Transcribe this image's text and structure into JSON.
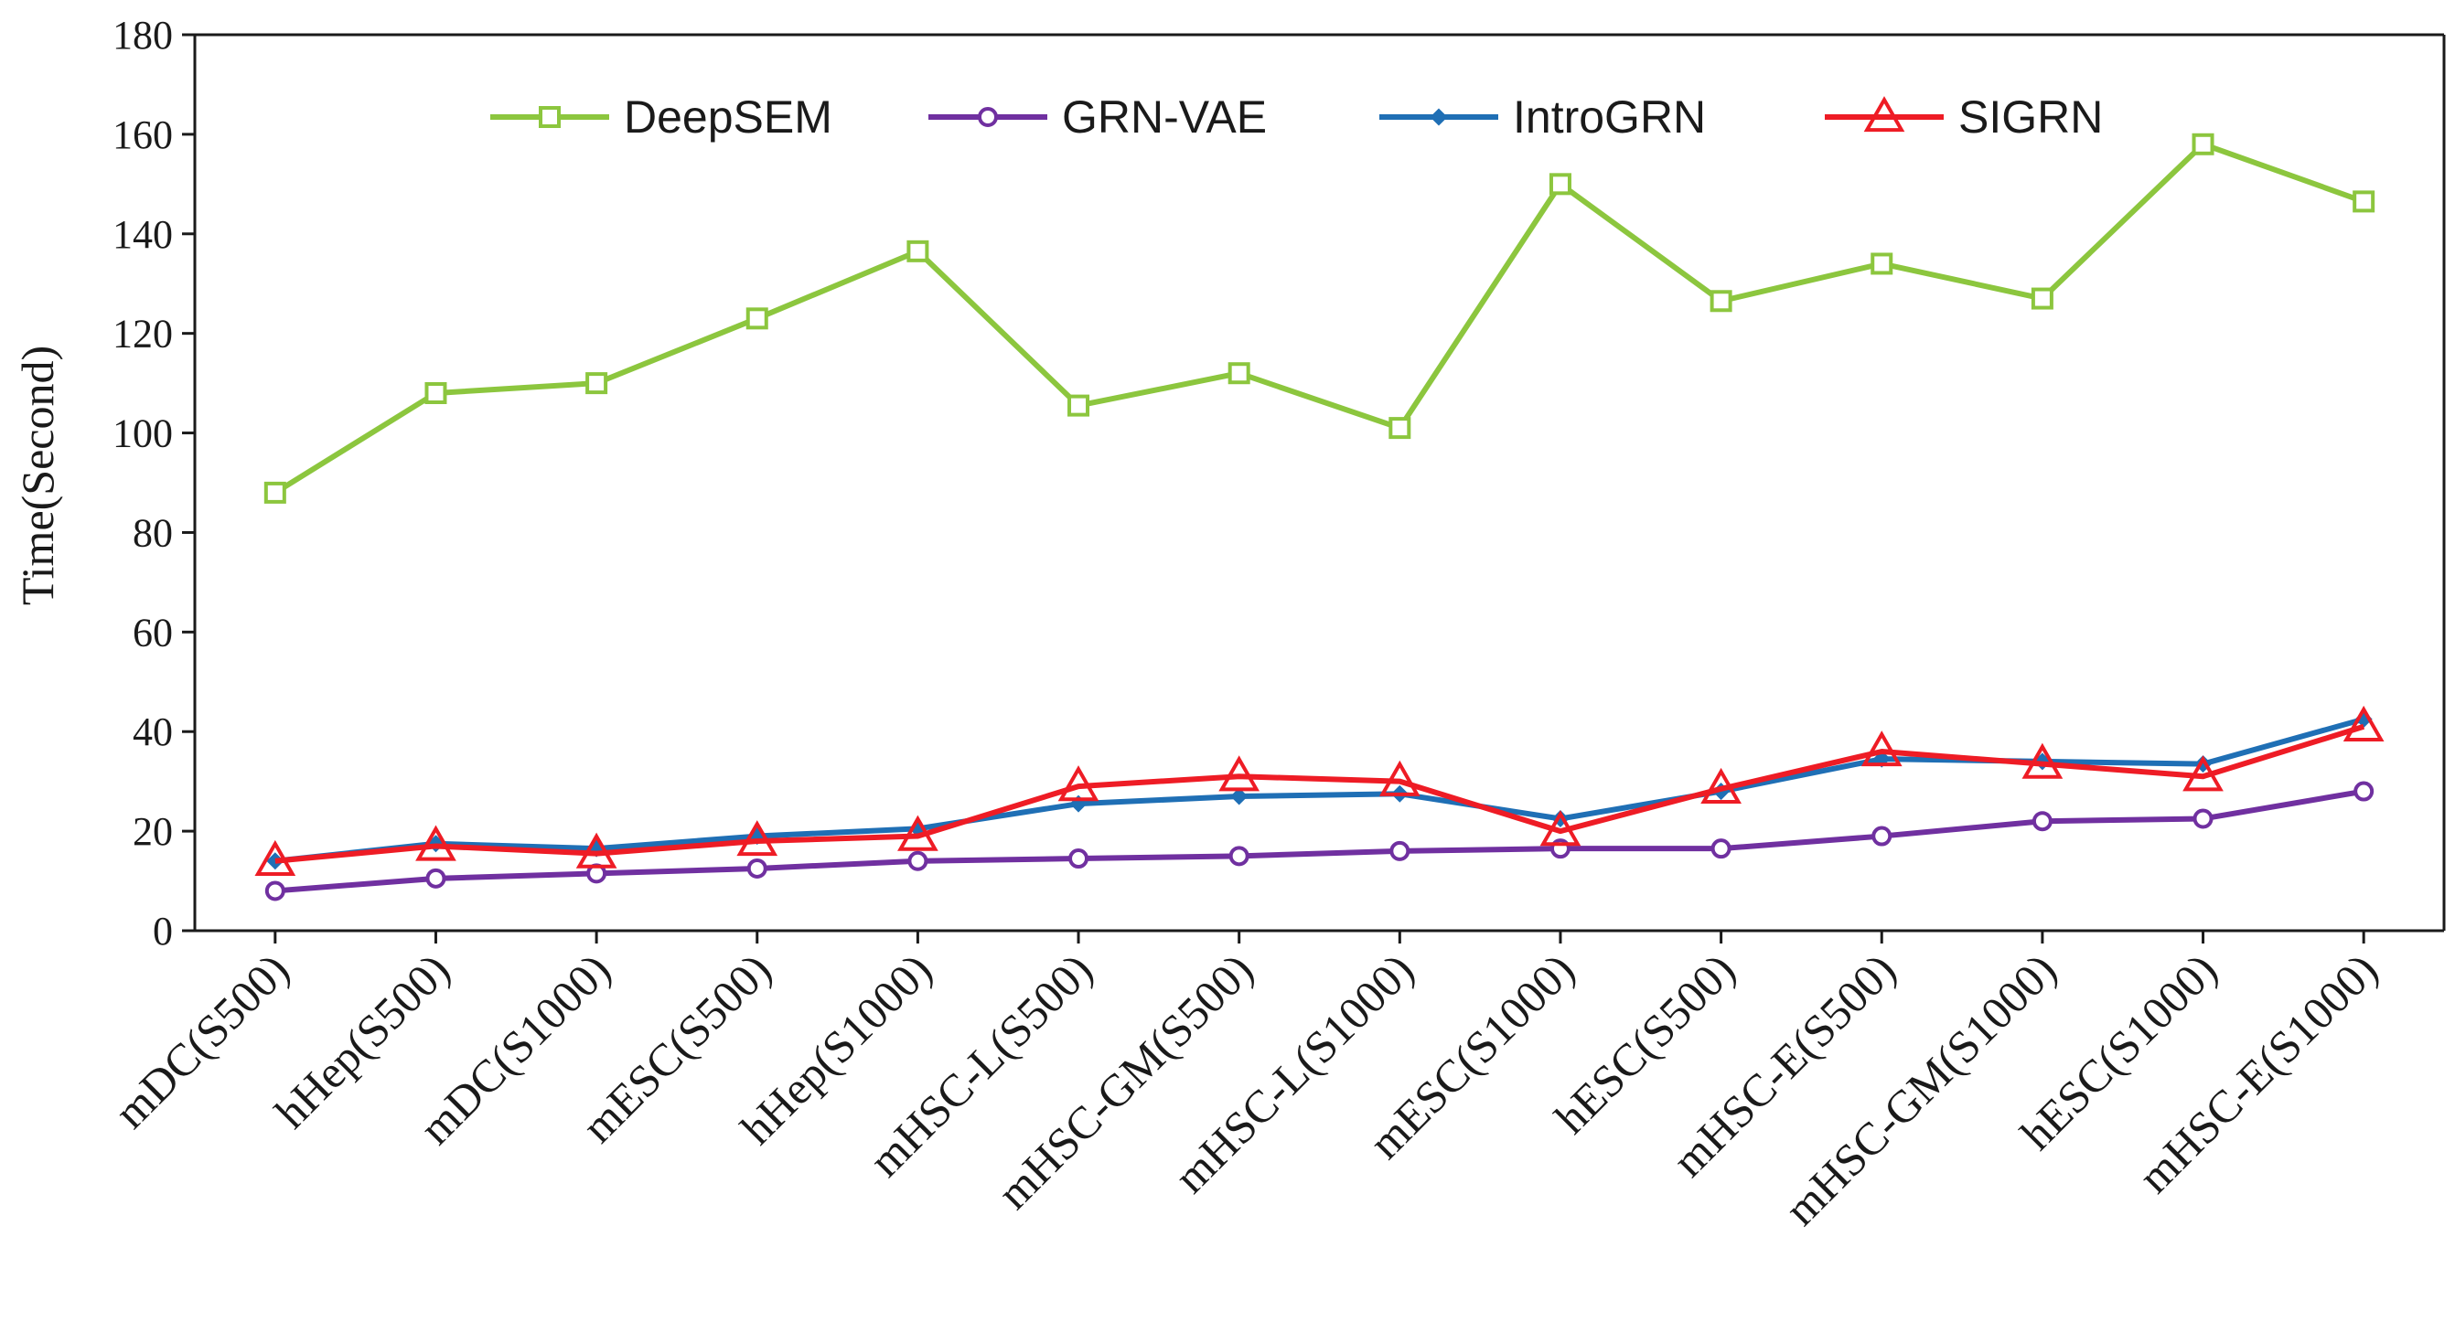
{
  "chart_data": {
    "type": "line",
    "title": "",
    "xlabel": "",
    "ylabel": "Time(Second)",
    "ylim": [
      0,
      180
    ],
    "yticks": [
      "0",
      "20",
      "40",
      "60",
      "80",
      "100",
      "120",
      "140",
      "160",
      "180"
    ],
    "grid": false,
    "legend_position": "top",
    "categories": [
      "mDC(S500)",
      "hHep(S500)",
      "mDC(S1000)",
      "mESC(S500)",
      "hHep(S1000)",
      "mHSC-L(S500)",
      "mHSC-GM(S500)",
      "mHSC-L(S1000)",
      "mESC(S1000)",
      "hESC(S500)",
      "mHSC-E(S500)",
      "mHSC-GM(S1000)",
      "hESC(S1000)",
      "mHSC-E(S1000)"
    ],
    "series": [
      {
        "name": "DeepSEM",
        "color": "#8cc63e",
        "marker": "square",
        "values": [
          88,
          108,
          110,
          123,
          136.5,
          105.5,
          112,
          101,
          150,
          126.5,
          134,
          127,
          158,
          146.5
        ]
      },
      {
        "name": "GRN-VAE",
        "color": "#7030a0",
        "marker": "circle",
        "values": [
          8,
          10.5,
          11.5,
          12.5,
          14,
          14.5,
          15,
          16,
          16.5,
          16.5,
          19,
          22,
          22.5,
          28
        ]
      },
      {
        "name": "IntroGRN",
        "color": "#1f6fb5",
        "marker": "diamond",
        "values": [
          14,
          17.5,
          16.5,
          19,
          20.5,
          25.5,
          27,
          27.5,
          22.5,
          28,
          34.5,
          34,
          33.5,
          42.5
        ]
      },
      {
        "name": "SIGRN",
        "color": "#ee1c25",
        "marker": "triangle",
        "values": [
          14,
          17,
          15.5,
          18,
          19,
          29,
          31,
          30,
          20,
          28.5,
          36,
          33.5,
          31,
          41
        ]
      }
    ]
  }
}
